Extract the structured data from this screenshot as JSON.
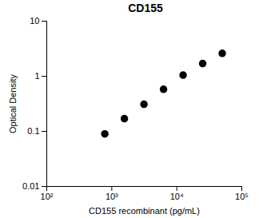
{
  "chart_data": {
    "type": "scatter",
    "title": "CD155",
    "x_label": "CD155 recombinant (pg/mL)",
    "y_label": "Optical Density",
    "log": true,
    "color": "#000000",
    "marker": "circle",
    "x": [
      781,
      1563,
      3125,
      6250,
      12500,
      25000,
      50000
    ],
    "values": [
      0.09,
      0.17,
      0.31,
      0.58,
      1.05,
      1.7,
      2.6
    ],
    "xlim": [
      100,
      100000
    ],
    "xticks": [
      {
        "value": 100,
        "label": "10²"
      },
      {
        "value": 1000,
        "label": "10³"
      },
      {
        "value": 10000,
        "label": "10⁴"
      },
      {
        "value": 100000,
        "label": "10⁵"
      }
    ],
    "ylim": [
      0.01,
      10
    ],
    "yticks": [
      0.01,
      0.1,
      1,
      10
    ]
  }
}
